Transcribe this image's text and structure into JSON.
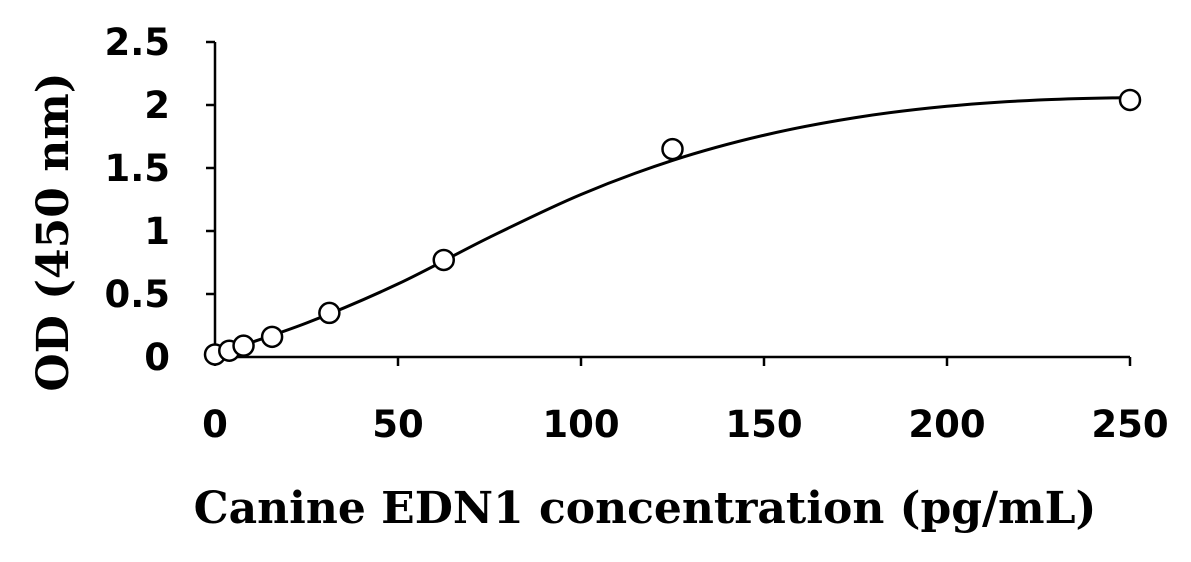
{
  "chart_data": {
    "type": "scatter",
    "title": "",
    "xlabel": "Canine EDN1 concentration (pg/mL)",
    "ylabel": "OD (450 nm)",
    "xlim": [
      0,
      250
    ],
    "ylim": [
      0,
      2.5
    ],
    "xticks": [
      0,
      50,
      100,
      150,
      200,
      250
    ],
    "xtick_labels": [
      "0",
      "50",
      "100",
      "150",
      "200",
      "250"
    ],
    "yticks": [
      0,
      0.5,
      1,
      1.5,
      2,
      2.5
    ],
    "ytick_labels": [
      "0",
      "0.5",
      "1",
      "1.5",
      "2",
      "2.5"
    ],
    "grid": false,
    "legend": "none",
    "series": [
      {
        "marker": "open-circle",
        "x": [
          0,
          3.9,
          7.8,
          15.6,
          31.25,
          62.5,
          125,
          250
        ],
        "y": [
          0.02,
          0.05,
          0.09,
          0.16,
          0.35,
          0.77,
          1.65,
          2.04
        ]
      }
    ],
    "fit_curve": {
      "style": "solid",
      "x": [
        0,
        25,
        50,
        75,
        100,
        125,
        150,
        175,
        200,
        225,
        250
      ],
      "y": [
        0.02,
        0.27,
        0.58,
        0.95,
        1.29,
        1.56,
        1.76,
        1.9,
        1.99,
        2.04,
        2.06
      ]
    }
  }
}
